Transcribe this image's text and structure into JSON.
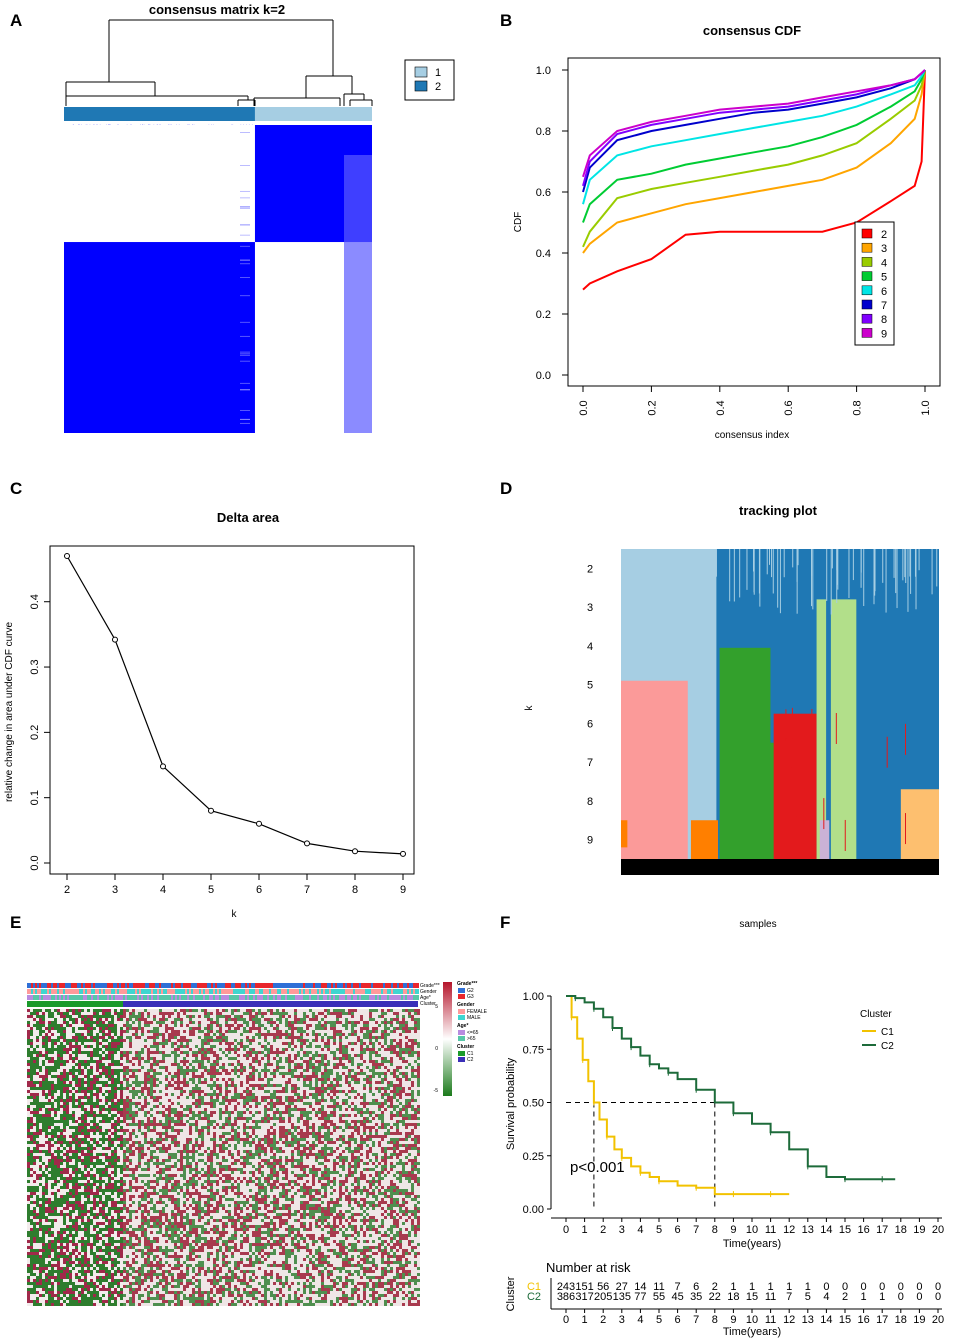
{
  "panels": {
    "a": {
      "label": "A"
    },
    "b": {
      "label": "B"
    },
    "c": {
      "label": "C"
    },
    "d": {
      "label": "D"
    },
    "e": {
      "label": "E"
    },
    "f": {
      "label": "F"
    }
  },
  "chart_data": [
    {
      "id": "A",
      "type": "heatmap",
      "title": "consensus matrix k=2",
      "legend": {
        "labels": [
          "1",
          "2"
        ],
        "colors": [
          "#a6cee3",
          "#1f78b4"
        ]
      },
      "clusters": [
        {
          "name": "1",
          "fraction": 0.38,
          "color": "#a6cee3"
        },
        {
          "name": "2",
          "fraction": 0.62,
          "color": "#1f78b4"
        }
      ],
      "colors": {
        "high": "#0000ff",
        "low": "#ffffff"
      }
    },
    {
      "id": "B",
      "type": "line",
      "title": "consensus CDF",
      "xlabel": "consensus index",
      "ylabel": "CDF",
      "xlim": [
        0,
        1
      ],
      "ylim": [
        0,
        1
      ],
      "xticks": [
        "0.0",
        "0.2",
        "0.4",
        "0.6",
        "0.8",
        "1.0"
      ],
      "yticks": [
        "0.0",
        "0.2",
        "0.4",
        "0.6",
        "0.8",
        "1.0"
      ],
      "x": [
        0,
        0.02,
        0.1,
        0.2,
        0.3,
        0.4,
        0.5,
        0.6,
        0.7,
        0.8,
        0.9,
        0.97,
        0.99,
        1.0
      ],
      "series": [
        {
          "name": "2",
          "color": "#ff0000",
          "values": [
            0.28,
            0.3,
            0.34,
            0.38,
            0.46,
            0.47,
            0.47,
            0.47,
            0.47,
            0.5,
            0.57,
            0.62,
            0.7,
            1.0
          ]
        },
        {
          "name": "3",
          "color": "#ffa500",
          "values": [
            0.4,
            0.43,
            0.5,
            0.53,
            0.56,
            0.58,
            0.6,
            0.62,
            0.64,
            0.68,
            0.76,
            0.84,
            0.92,
            1.0
          ]
        },
        {
          "name": "4",
          "color": "#99cc00",
          "values": [
            0.42,
            0.47,
            0.58,
            0.61,
            0.63,
            0.65,
            0.67,
            0.69,
            0.72,
            0.76,
            0.84,
            0.9,
            0.95,
            1.0
          ]
        },
        {
          "name": "5",
          "color": "#00cc33",
          "values": [
            0.5,
            0.56,
            0.64,
            0.66,
            0.69,
            0.71,
            0.73,
            0.75,
            0.78,
            0.82,
            0.88,
            0.93,
            0.97,
            1.0
          ]
        },
        {
          "name": "6",
          "color": "#00e5e5",
          "values": [
            0.56,
            0.64,
            0.72,
            0.75,
            0.77,
            0.79,
            0.81,
            0.83,
            0.85,
            0.88,
            0.92,
            0.95,
            0.98,
            1.0
          ]
        },
        {
          "name": "7",
          "color": "#0000cc",
          "values": [
            0.6,
            0.68,
            0.77,
            0.8,
            0.82,
            0.84,
            0.86,
            0.87,
            0.89,
            0.91,
            0.94,
            0.97,
            0.99,
            1.0
          ]
        },
        {
          "name": "8",
          "color": "#8000ff",
          "values": [
            0.62,
            0.7,
            0.79,
            0.82,
            0.84,
            0.86,
            0.87,
            0.88,
            0.9,
            0.92,
            0.95,
            0.97,
            0.99,
            1.0
          ]
        },
        {
          "name": "9",
          "color": "#cc00cc",
          "values": [
            0.65,
            0.72,
            0.8,
            0.83,
            0.85,
            0.87,
            0.88,
            0.89,
            0.91,
            0.93,
            0.95,
            0.97,
            0.99,
            1.0
          ]
        }
      ],
      "legend_position": "right"
    },
    {
      "id": "C",
      "type": "line",
      "title": "Delta area",
      "xlabel": "k",
      "ylabel": "relative change in area under CDF curve",
      "xlim": [
        2,
        9
      ],
      "ylim": [
        0,
        0.47
      ],
      "x": [
        2,
        3,
        4,
        5,
        6,
        7,
        8,
        9
      ],
      "values": [
        0.47,
        0.342,
        0.148,
        0.08,
        0.06,
        0.03,
        0.018,
        0.014
      ],
      "xticks": [
        "2",
        "3",
        "4",
        "5",
        "6",
        "7",
        "8",
        "9"
      ],
      "yticks": [
        "0.0",
        "0.1",
        "0.2",
        "0.3",
        "0.4"
      ]
    },
    {
      "id": "D",
      "type": "heatmap",
      "title": "tracking plot",
      "xlabel": "samples",
      "ylabel": "k",
      "rows": [
        "2",
        "3",
        "4",
        "5",
        "6",
        "7",
        "8",
        "9"
      ],
      "palette": [
        "#a6cee3",
        "#1f78b4",
        "#33a02c",
        "#fb9a99",
        "#e31a1c",
        "#b2df8a",
        "#ff7f00",
        "#fdbf6f",
        "#cab2d6"
      ]
    },
    {
      "id": "E",
      "type": "heatmap",
      "annotation_rows": [
        "Grade***",
        "Gender",
        "Age*",
        "Cluster"
      ],
      "legend": {
        "scale": [
          "5",
          "0",
          "-5"
        ],
        "groups": [
          {
            "title": "Grade***",
            "items": [
              {
                "label": "G2",
                "color": "#2f6fd6"
              },
              {
                "label": "G3",
                "color": "#e8262c"
              }
            ]
          },
          {
            "title": "Gender",
            "items": [
              {
                "label": "FEMALE",
                "color": "#ff9a9a"
              },
              {
                "label": "MALE",
                "color": "#3fd6d0"
              }
            ]
          },
          {
            "title": "Age*",
            "items": [
              {
                "label": "<=65",
                "color": "#b98be0"
              },
              {
                "label": ">65",
                "color": "#58c7a8"
              }
            ]
          },
          {
            "title": "Cluster",
            "items": [
              {
                "label": "C1",
                "color": "#1a9a2a"
              },
              {
                "label": "C2",
                "color": "#3a2fb8"
              }
            ]
          }
        ]
      }
    },
    {
      "id": "F",
      "type": "line",
      "xlabel": "Time(years)",
      "ylabel": "Survival probability",
      "xlim": [
        0,
        20
      ],
      "ylim": [
        0,
        1
      ],
      "xticks": [
        "0",
        "1",
        "2",
        "3",
        "4",
        "5",
        "6",
        "7",
        "8",
        "9",
        "10",
        "11",
        "12",
        "13",
        "14",
        "15",
        "16",
        "17",
        "18",
        "19",
        "20"
      ],
      "yticks": [
        "0.00",
        "0.25",
        "0.50",
        "0.75",
        "1.00"
      ],
      "annotation": "p<0.001",
      "legend_title": "Cluster",
      "median_survival": {
        "C1": 1.5,
        "C2": 8.0
      },
      "series": [
        {
          "name": "C1",
          "color": "#f2c200",
          "x": [
            0,
            0.3,
            0.6,
            0.9,
            1.2,
            1.5,
            1.8,
            2.2,
            2.6,
            3.0,
            3.5,
            4.0,
            4.5,
            5.0,
            6.0,
            7.0,
            8.0,
            9.0,
            10.0,
            11.0,
            12.0
          ],
          "values": [
            1.0,
            0.9,
            0.8,
            0.7,
            0.6,
            0.5,
            0.42,
            0.34,
            0.28,
            0.24,
            0.2,
            0.17,
            0.15,
            0.13,
            0.11,
            0.1,
            0.07,
            0.07,
            0.07,
            0.07,
            0.07
          ]
        },
        {
          "name": "C2",
          "color": "#1d6b3a",
          "x": [
            0,
            0.5,
            1.0,
            1.5,
            2.0,
            2.5,
            3.0,
            3.5,
            4.0,
            4.5,
            5.0,
            5.5,
            6.0,
            7.0,
            8.0,
            9.0,
            10.0,
            11.0,
            12.0,
            13.0,
            14.0,
            15.0,
            16.0,
            17.0,
            17.7
          ],
          "values": [
            1.0,
            0.99,
            0.97,
            0.94,
            0.9,
            0.85,
            0.8,
            0.76,
            0.72,
            0.68,
            0.66,
            0.64,
            0.61,
            0.56,
            0.5,
            0.45,
            0.4,
            0.36,
            0.28,
            0.2,
            0.15,
            0.14,
            0.14,
            0.14,
            0.14
          ]
        }
      ],
      "risk_table": {
        "title": "Number at risk",
        "ylabel": "Cluster",
        "xlabel": "Time(years)",
        "rows": [
          {
            "name": "C1",
            "color": "#f2c200",
            "values": [
              "243",
              "151",
              "56",
              "27",
              "14",
              "11",
              "7",
              "6",
              "2",
              "1",
              "1",
              "1",
              "1",
              "1",
              "0",
              "0",
              "0",
              "0",
              "0",
              "0",
              "0"
            ]
          },
          {
            "name": "C2",
            "color": "#1d6b3a",
            "values": [
              "386",
              "317",
              "205",
              "135",
              "77",
              "55",
              "45",
              "35",
              "22",
              "18",
              "15",
              "11",
              "7",
              "5",
              "4",
              "2",
              "1",
              "1",
              "0",
              "0",
              "0"
            ]
          }
        ]
      }
    }
  ]
}
